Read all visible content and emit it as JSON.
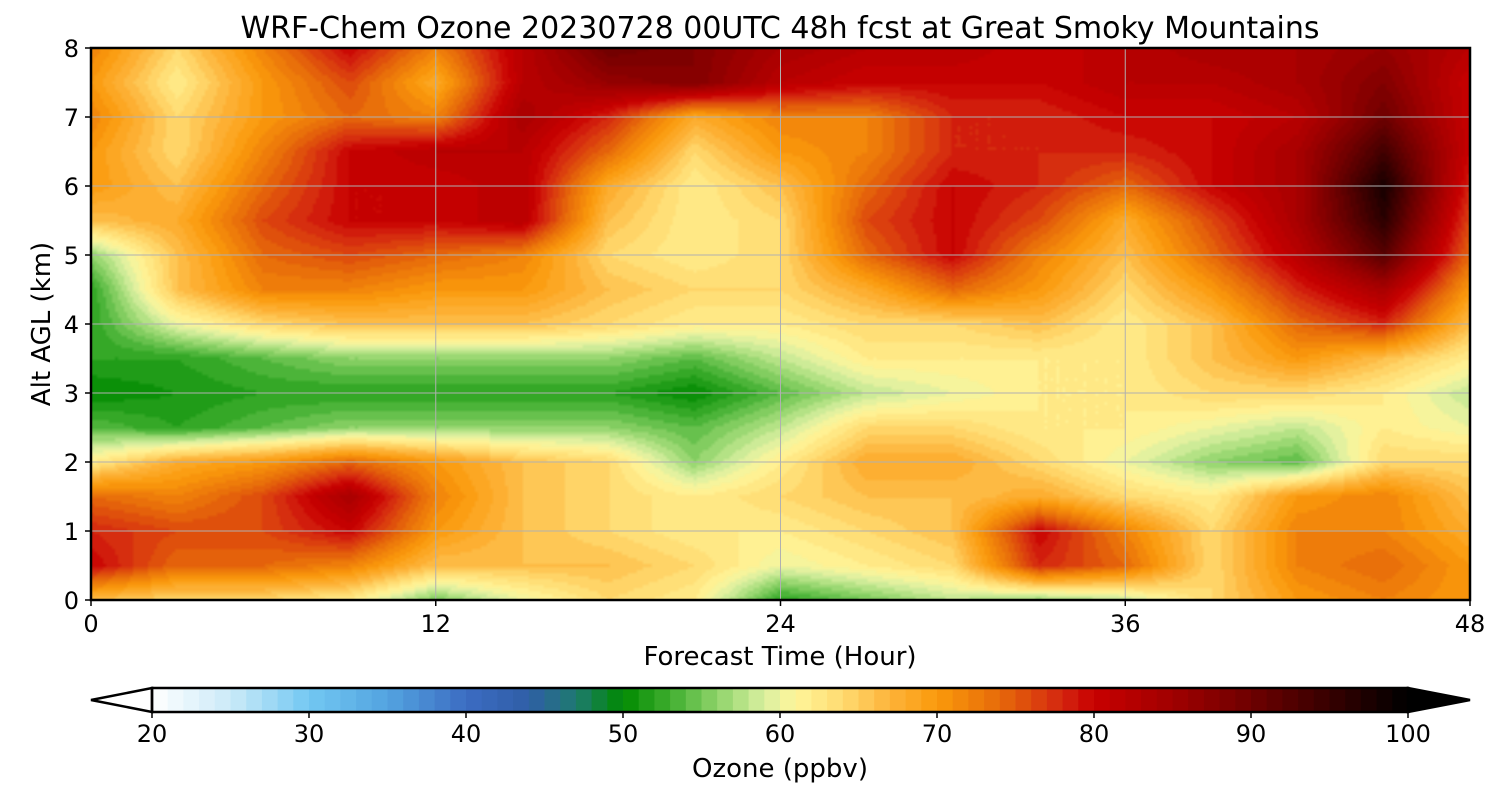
{
  "chart_data": {
    "type": "heatmap",
    "title": "WRF-Chem Ozone  20230728 00UTC 48h fcst at Great Smoky Mountains",
    "xlabel": "Forecast Time (Hour)",
    "ylabel": "Alt AGL (km)",
    "xlim": [
      0,
      48
    ],
    "ylim": [
      0,
      8
    ],
    "xticks": [
      0,
      12,
      24,
      36,
      48
    ],
    "yticks": [
      0,
      1,
      2,
      3,
      4,
      5,
      6,
      7,
      8
    ],
    "grid": true,
    "x": [
      0,
      3,
      6,
      9,
      12,
      15,
      18,
      21,
      24,
      27,
      30,
      33,
      36,
      39,
      42,
      45,
      48
    ],
    "y": [
      0,
      0.5,
      1,
      1.5,
      2,
      2.5,
      3,
      3.5,
      4,
      4.5,
      5,
      5.5,
      6,
      6.5,
      7,
      7.5,
      8
    ],
    "z": [
      [
        66,
        64,
        64,
        62,
        55,
        60,
        64,
        62,
        52,
        55,
        58,
        56,
        58,
        64,
        70,
        72,
        70
      ],
      [
        80,
        74,
        74,
        72,
        66,
        66,
        66,
        64,
        60,
        62,
        64,
        78,
        74,
        64,
        72,
        74,
        70
      ],
      [
        78,
        76,
        76,
        80,
        70,
        66,
        64,
        62,
        62,
        64,
        66,
        80,
        72,
        64,
        72,
        72,
        68
      ],
      [
        74,
        72,
        76,
        84,
        72,
        66,
        64,
        62,
        64,
        66,
        66,
        68,
        64,
        62,
        70,
        72,
        66
      ],
      [
        62,
        68,
        70,
        74,
        70,
        66,
        64,
        56,
        62,
        68,
        68,
        64,
        60,
        56,
        54,
        64,
        64
      ],
      [
        54,
        52,
        54,
        56,
        56,
        56,
        56,
        54,
        58,
        64,
        64,
        62,
        62,
        60,
        58,
        62,
        60
      ],
      [
        50,
        51,
        52,
        52,
        52,
        52,
        52,
        50,
        54,
        58,
        60,
        62,
        62,
        64,
        64,
        62,
        58
      ],
      [
        52,
        52,
        54,
        56,
        56,
        56,
        56,
        54,
        58,
        62,
        62,
        62,
        62,
        66,
        70,
        66,
        62
      ],
      [
        52,
        60,
        64,
        66,
        66,
        66,
        64,
        62,
        62,
        64,
        64,
        66,
        62,
        66,
        74,
        78,
        66
      ],
      [
        52,
        66,
        72,
        72,
        70,
        70,
        66,
        64,
        64,
        68,
        74,
        70,
        64,
        70,
        78,
        84,
        70
      ],
      [
        56,
        66,
        74,
        76,
        74,
        72,
        64,
        62,
        64,
        74,
        80,
        72,
        66,
        74,
        82,
        92,
        74
      ],
      [
        66,
        68,
        76,
        80,
        80,
        82,
        66,
        62,
        64,
        76,
        80,
        76,
        68,
        76,
        84,
        96,
        76
      ],
      [
        70,
        66,
        74,
        80,
        80,
        82,
        68,
        62,
        66,
        74,
        80,
        78,
        74,
        80,
        84,
        98,
        78
      ],
      [
        70,
        64,
        72,
        80,
        82,
        82,
        74,
        64,
        70,
        72,
        78,
        78,
        78,
        80,
        84,
        94,
        80
      ],
      [
        72,
        64,
        70,
        74,
        72,
        84,
        78,
        68,
        72,
        72,
        78,
        78,
        80,
        80,
        82,
        90,
        80
      ],
      [
        70,
        62,
        70,
        76,
        68,
        82,
        86,
        88,
        82,
        80,
        80,
        80,
        82,
        82,
        84,
        88,
        80
      ],
      [
        72,
        64,
        72,
        80,
        72,
        82,
        90,
        88,
        84,
        82,
        82,
        80,
        82,
        84,
        84,
        86,
        82
      ]
    ],
    "colorbar": {
      "label": "Ozone  (ppbv)",
      "min": 20,
      "max": 100,
      "ticks": [
        20,
        30,
        40,
        50,
        60,
        70,
        80,
        90,
        100
      ],
      "extend": "both",
      "colormap": [
        [
          20,
          "#ffffff"
        ],
        [
          25,
          "#cbeaf8"
        ],
        [
          30,
          "#72c8f2"
        ],
        [
          35,
          "#53a3e0"
        ],
        [
          40,
          "#3c6cc2"
        ],
        [
          44,
          "#2f5ea6"
        ],
        [
          47,
          "#1e7a70"
        ],
        [
          50,
          "#008a00"
        ],
        [
          53,
          "#3fae2f"
        ],
        [
          56,
          "#8fd36a"
        ],
        [
          59,
          "#d9f0a0"
        ],
        [
          61,
          "#fff59a"
        ],
        [
          64,
          "#ffda70"
        ],
        [
          67,
          "#fdb33a"
        ],
        [
          70,
          "#fb9a0b"
        ],
        [
          74,
          "#e66a0a"
        ],
        [
          78,
          "#d42510"
        ],
        [
          80,
          "#c80000"
        ],
        [
          85,
          "#a00000"
        ],
        [
          90,
          "#6e0000"
        ],
        [
          95,
          "#360000"
        ],
        [
          100,
          "#000000"
        ]
      ]
    }
  }
}
